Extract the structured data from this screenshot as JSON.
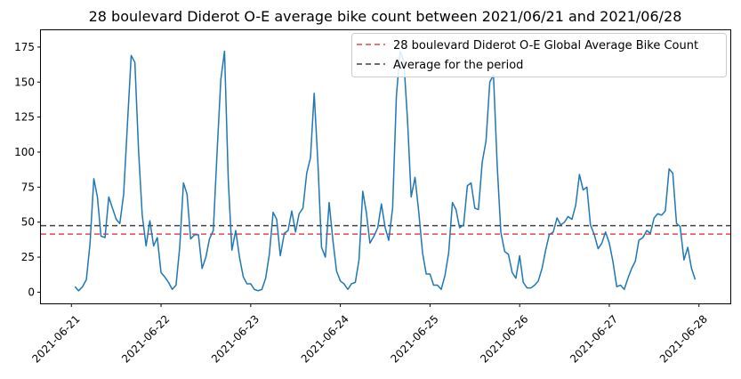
{
  "chart_data": {
    "type": "line",
    "title": "28 boulevard Diderot O-E average bike count between 2021/06/21 and 2021/06/28",
    "xlabel": "",
    "ylabel": "",
    "x_ticks": [
      "2021-06-21",
      "2021-06-22",
      "2021-06-23",
      "2021-06-24",
      "2021-06-25",
      "2021-06-26",
      "2021-06-27",
      "2021-06-28"
    ],
    "y_ticks": [
      0,
      25,
      50,
      75,
      100,
      125,
      150,
      175
    ],
    "xlim_days": [
      -0.34,
      7.35
    ],
    "ylim": [
      -8,
      187
    ],
    "grid": false,
    "legend_position": "upper right",
    "series": [
      {
        "color": "#1f77b4",
        "points": [
          [
            0.04,
            4
          ],
          [
            0.08,
            1
          ],
          [
            0.125,
            4
          ],
          [
            0.167,
            9
          ],
          [
            0.208,
            35
          ],
          [
            0.25,
            81
          ],
          [
            0.29,
            68
          ],
          [
            0.33,
            40
          ],
          [
            0.375,
            39
          ],
          [
            0.417,
            68
          ],
          [
            0.458,
            60
          ],
          [
            0.5,
            52
          ],
          [
            0.54,
            49
          ],
          [
            0.583,
            70
          ],
          [
            0.625,
            120
          ],
          [
            0.667,
            169
          ],
          [
            0.708,
            164
          ],
          [
            0.75,
            100
          ],
          [
            0.79,
            55
          ],
          [
            0.833,
            33
          ],
          [
            0.875,
            51
          ],
          [
            0.917,
            33
          ],
          [
            0.958,
            39
          ],
          [
            1.0,
            14
          ],
          [
            1.04,
            11
          ],
          [
            1.083,
            7
          ],
          [
            1.125,
            2
          ],
          [
            1.167,
            5
          ],
          [
            1.208,
            32
          ],
          [
            1.25,
            78
          ],
          [
            1.29,
            70
          ],
          [
            1.33,
            38
          ],
          [
            1.375,
            41
          ],
          [
            1.417,
            41
          ],
          [
            1.458,
            17
          ],
          [
            1.5,
            25
          ],
          [
            1.54,
            38
          ],
          [
            1.583,
            44
          ],
          [
            1.625,
            100
          ],
          [
            1.667,
            152
          ],
          [
            1.708,
            172
          ],
          [
            1.75,
            80
          ],
          [
            1.79,
            30
          ],
          [
            1.833,
            44
          ],
          [
            1.875,
            25
          ],
          [
            1.917,
            11
          ],
          [
            1.958,
            6
          ],
          [
            2.0,
            6
          ],
          [
            2.04,
            2
          ],
          [
            2.083,
            1
          ],
          [
            2.125,
            2
          ],
          [
            2.167,
            10
          ],
          [
            2.208,
            27
          ],
          [
            2.25,
            57
          ],
          [
            2.29,
            52
          ],
          [
            2.33,
            26
          ],
          [
            2.375,
            42
          ],
          [
            2.417,
            44
          ],
          [
            2.458,
            58
          ],
          [
            2.5,
            43
          ],
          [
            2.54,
            56
          ],
          [
            2.583,
            60
          ],
          [
            2.625,
            85
          ],
          [
            2.667,
            96
          ],
          [
            2.708,
            142
          ],
          [
            2.75,
            92
          ],
          [
            2.79,
            32
          ],
          [
            2.833,
            25
          ],
          [
            2.875,
            64
          ],
          [
            2.917,
            37
          ],
          [
            2.958,
            15
          ],
          [
            3.0,
            8
          ],
          [
            3.04,
            6
          ],
          [
            3.083,
            2
          ],
          [
            3.125,
            6
          ],
          [
            3.167,
            7
          ],
          [
            3.208,
            23
          ],
          [
            3.25,
            72
          ],
          [
            3.29,
            57
          ],
          [
            3.33,
            35
          ],
          [
            3.375,
            40
          ],
          [
            3.417,
            46
          ],
          [
            3.458,
            63
          ],
          [
            3.5,
            46
          ],
          [
            3.54,
            37
          ],
          [
            3.583,
            60
          ],
          [
            3.625,
            140
          ],
          [
            3.667,
            172
          ],
          [
            3.708,
            165
          ],
          [
            3.75,
            122
          ],
          [
            3.79,
            68
          ],
          [
            3.833,
            82
          ],
          [
            3.875,
            57
          ],
          [
            3.917,
            28
          ],
          [
            3.958,
            13
          ],
          [
            4.0,
            13
          ],
          [
            4.04,
            5
          ],
          [
            4.083,
            5
          ],
          [
            4.125,
            2
          ],
          [
            4.167,
            12
          ],
          [
            4.208,
            28
          ],
          [
            4.25,
            64
          ],
          [
            4.29,
            59
          ],
          [
            4.33,
            46
          ],
          [
            4.375,
            48
          ],
          [
            4.417,
            76
          ],
          [
            4.458,
            78
          ],
          [
            4.5,
            60
          ],
          [
            4.54,
            59
          ],
          [
            4.583,
            93
          ],
          [
            4.625,
            108
          ],
          [
            4.667,
            150
          ],
          [
            4.708,
            155
          ],
          [
            4.75,
            90
          ],
          [
            4.79,
            43
          ],
          [
            4.833,
            29
          ],
          [
            4.875,
            27
          ],
          [
            4.917,
            14
          ],
          [
            4.958,
            10
          ],
          [
            5.0,
            26
          ],
          [
            5.04,
            7
          ],
          [
            5.083,
            3
          ],
          [
            5.125,
            3
          ],
          [
            5.167,
            5
          ],
          [
            5.208,
            8
          ],
          [
            5.25,
            17
          ],
          [
            5.29,
            30
          ],
          [
            5.33,
            41
          ],
          [
            5.375,
            43
          ],
          [
            5.417,
            53
          ],
          [
            5.458,
            48
          ],
          [
            5.5,
            50
          ],
          [
            5.54,
            54
          ],
          [
            5.583,
            52
          ],
          [
            5.625,
            62
          ],
          [
            5.667,
            84
          ],
          [
            5.708,
            73
          ],
          [
            5.75,
            75
          ],
          [
            5.79,
            48
          ],
          [
            5.833,
            41
          ],
          [
            5.875,
            31
          ],
          [
            5.917,
            35
          ],
          [
            5.958,
            43
          ],
          [
            6.0,
            35
          ],
          [
            6.04,
            22
          ],
          [
            6.083,
            4
          ],
          [
            6.125,
            5
          ],
          [
            6.167,
            2
          ],
          [
            6.208,
            10
          ],
          [
            6.25,
            17
          ],
          [
            6.29,
            22
          ],
          [
            6.33,
            37
          ],
          [
            6.375,
            39
          ],
          [
            6.417,
            44
          ],
          [
            6.458,
            42
          ],
          [
            6.5,
            53
          ],
          [
            6.54,
            56
          ],
          [
            6.583,
            55
          ],
          [
            6.625,
            58
          ],
          [
            6.667,
            88
          ],
          [
            6.708,
            85
          ],
          [
            6.75,
            49
          ],
          [
            6.79,
            47
          ],
          [
            6.833,
            23
          ],
          [
            6.875,
            32
          ],
          [
            6.917,
            17
          ],
          [
            6.958,
            9
          ]
        ]
      }
    ],
    "reference_lines": [
      {
        "label": "28 boulevard Diderot O-E Global Average Bike Count",
        "y": 41.5,
        "color": "#e8474c",
        "dash": "6,4"
      },
      {
        "label": "Average for the period",
        "y": 47.5,
        "color": "#404040",
        "dash": "6,4"
      }
    ]
  }
}
